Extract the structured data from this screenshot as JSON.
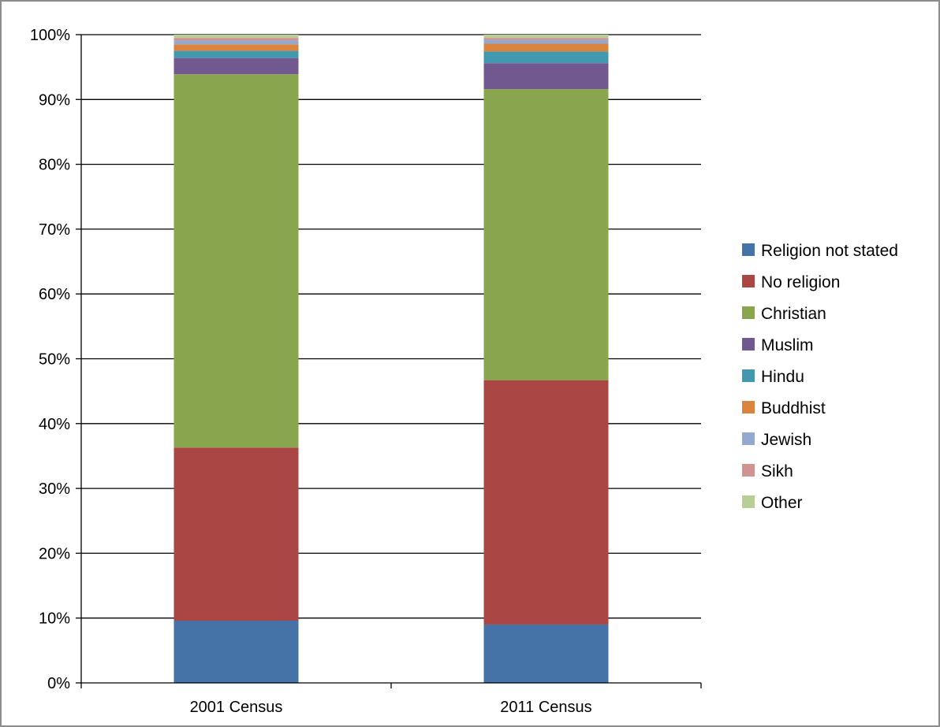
{
  "chart_data": {
    "type": "bar",
    "stacked": true,
    "percent_stacked": true,
    "categories": [
      "2001 Census",
      "2011 Census"
    ],
    "series": [
      {
        "name": "Religion not stated",
        "color": "#4572a7",
        "values": [
          9.6,
          9.0
        ]
      },
      {
        "name": "No religion",
        "color": "#aa4643",
        "values": [
          26.7,
          37.7
        ]
      },
      {
        "name": "Christian",
        "color": "#89a54e",
        "values": [
          57.6,
          44.9
        ]
      },
      {
        "name": "Muslim",
        "color": "#71588f",
        "values": [
          2.5,
          4.0
        ]
      },
      {
        "name": "Hindu",
        "color": "#4198af",
        "values": [
          1.1,
          1.8
        ]
      },
      {
        "name": "Buddhist",
        "color": "#db843d",
        "values": [
          1.0,
          1.2
        ]
      },
      {
        "name": "Jewish",
        "color": "#93a9cf",
        "values": [
          0.6,
          0.6
        ]
      },
      {
        "name": "Sikh",
        "color": "#d19392",
        "values": [
          0.4,
          0.3
        ]
      },
      {
        "name": "Other",
        "color": "#b9cd96",
        "values": [
          0.5,
          0.5
        ]
      }
    ],
    "y_ticks": [
      "0%",
      "10%",
      "20%",
      "30%",
      "40%",
      "50%",
      "60%",
      "70%",
      "80%",
      "90%",
      "100%"
    ],
    "ylim": [
      0,
      100
    ],
    "grid": true,
    "legend_position": "right",
    "title": "",
    "xlabel": "",
    "ylabel": ""
  }
}
